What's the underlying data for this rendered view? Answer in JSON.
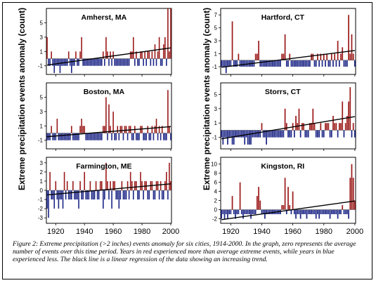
{
  "figure": {
    "y_axis_label": "Extreme precipitation events anomaly (count)",
    "caption": "Figure 2: Extreme precipitation (>2 inches) events anomaly for six cities, 1914-2000. In the graph, zero represents the average number of events over this time period.  Years in red experienced more than average extreme events, while years in blue experienced less.  The black line is a linear regression of the data showing an increasing trend.",
    "colors": {
      "above": "#9b1a1a",
      "below": "#1c2585",
      "trend": "#000000"
    }
  },
  "chart_data": [
    {
      "type": "bar",
      "title": "Amherst, MA",
      "x_ticks": [
        1920,
        1940,
        1960,
        1980,
        2000
      ],
      "xlim": [
        1914,
        2000
      ],
      "y_ticks": [
        -1,
        1,
        3,
        5
      ],
      "ylim": [
        -2.2,
        7
      ],
      "trend": {
        "start": [
          1914,
          -0.9
        ],
        "end": [
          2000,
          1.5
        ]
      },
      "x": [
        1914,
        1915,
        1916,
        1917,
        1918,
        1919,
        1920,
        1921,
        1922,
        1923,
        1924,
        1925,
        1926,
        1927,
        1928,
        1929,
        1930,
        1931,
        1932,
        1933,
        1934,
        1935,
        1936,
        1937,
        1938,
        1939,
        1940,
        1941,
        1942,
        1943,
        1944,
        1945,
        1946,
        1947,
        1948,
        1949,
        1950,
        1951,
        1952,
        1953,
        1954,
        1955,
        1956,
        1957,
        1958,
        1959,
        1960,
        1961,
        1962,
        1963,
        1964,
        1965,
        1966,
        1967,
        1968,
        1969,
        1970,
        1971,
        1972,
        1973,
        1974,
        1975,
        1976,
        1977,
        1978,
        1979,
        1980,
        1981,
        1982,
        1983,
        1984,
        1985,
        1986,
        1987,
        1988,
        1989,
        1990,
        1991,
        1992,
        1993,
        1994,
        1995,
        1996,
        1997,
        1998,
        1999,
        2000
      ],
      "values": [
        3,
        -1,
        -1,
        1,
        -1,
        -2,
        -1,
        -1,
        -1,
        -2,
        -1,
        -1,
        -1,
        -1,
        -1,
        1,
        -1,
        -2,
        -1,
        -1,
        1,
        -1,
        -1,
        1,
        3,
        -1,
        -1,
        -1,
        -1,
        -1,
        -1,
        -1,
        -1,
        -1,
        -1,
        -1,
        -1,
        -1,
        -1,
        1,
        -1,
        3,
        1,
        -1,
        1,
        -1,
        1,
        -1,
        -1,
        -1,
        -1,
        -1,
        -1,
        -1,
        -1,
        -1,
        -1,
        -1,
        1,
        1,
        3,
        -1,
        1,
        -1,
        -1,
        1,
        1,
        -1,
        1,
        -1,
        1,
        1,
        -1,
        1,
        -1,
        2,
        -1,
        1,
        3,
        -1,
        -1,
        2,
        3,
        -1,
        7,
        1,
        7
      ]
    },
    {
      "type": "bar",
      "title": "Boston, MA",
      "x_ticks": [
        1920,
        1940,
        1960,
        1980,
        2000
      ],
      "xlim": [
        1914,
        2000
      ],
      "y_ticks": [
        -1,
        1,
        3,
        5
      ],
      "ylim": [
        -2.2,
        7
      ],
      "trend": {
        "start": [
          1914,
          -0.5
        ],
        "end": [
          2000,
          0.9
        ]
      },
      "x": [
        1914,
        1915,
        1916,
        1917,
        1918,
        1919,
        1920,
        1921,
        1922,
        1923,
        1924,
        1925,
        1926,
        1927,
        1928,
        1929,
        1930,
        1931,
        1932,
        1933,
        1934,
        1935,
        1936,
        1937,
        1938,
        1939,
        1940,
        1941,
        1942,
        1943,
        1944,
        1945,
        1946,
        1947,
        1948,
        1949,
        1950,
        1951,
        1952,
        1953,
        1954,
        1955,
        1956,
        1957,
        1958,
        1959,
        1960,
        1961,
        1962,
        1963,
        1964,
        1965,
        1966,
        1967,
        1968,
        1969,
        1970,
        1971,
        1972,
        1973,
        1974,
        1975,
        1976,
        1977,
        1978,
        1979,
        1980,
        1981,
        1982,
        1983,
        1984,
        1985,
        1986,
        1987,
        1988,
        1989,
        1990,
        1991,
        1992,
        1993,
        1994,
        1995,
        1996,
        1997,
        1998,
        1999,
        2000
      ],
      "values": [
        -1,
        -1,
        -1,
        1,
        -1,
        -1,
        -1,
        2,
        -1,
        -1,
        -1,
        -1,
        -1,
        -1,
        -1,
        -1,
        -1,
        1,
        -1,
        -1,
        -1,
        -1,
        -1,
        1,
        2,
        1,
        1,
        -1,
        -1,
        -1,
        -1,
        -1,
        -1,
        -1,
        -1,
        -1,
        -1,
        -1,
        -1,
        1,
        1,
        5,
        -1,
        4,
        1,
        -1,
        3,
        -1,
        -1,
        1,
        -1,
        1,
        1,
        -1,
        1,
        1,
        -1,
        1,
        1,
        -1,
        -1,
        1,
        -1,
        -1,
        -1,
        1,
        1,
        -1,
        -1,
        -1,
        1,
        -1,
        -1,
        1,
        -1,
        1,
        2,
        -1,
        1,
        -1,
        1,
        -1,
        -1,
        -1,
        6,
        1,
        -1
      ]
    },
    {
      "type": "bar",
      "title": "Farmington, ME",
      "x_ticks": [
        1920,
        1940,
        1960,
        1980,
        2000
      ],
      "xlim": [
        1914,
        2000
      ],
      "y_ticks": [
        -3,
        -2,
        -1,
        0,
        1,
        2,
        3
      ],
      "ylim": [
        -3.6,
        3.6
      ],
      "trend": {
        "start": [
          1914,
          -0.5
        ],
        "end": [
          2000,
          0.7
        ]
      },
      "x": [
        1914,
        1915,
        1916,
        1917,
        1918,
        1919,
        1920,
        1921,
        1922,
        1923,
        1924,
        1925,
        1926,
        1927,
        1928,
        1929,
        1930,
        1931,
        1932,
        1933,
        1934,
        1935,
        1936,
        1937,
        1938,
        1939,
        1940,
        1941,
        1942,
        1943,
        1944,
        1945,
        1946,
        1947,
        1948,
        1949,
        1950,
        1951,
        1952,
        1953,
        1954,
        1955,
        1956,
        1957,
        1958,
        1959,
        1960,
        1961,
        1962,
        1963,
        1964,
        1965,
        1966,
        1967,
        1968,
        1969,
        1970,
        1971,
        1972,
        1973,
        1974,
        1975,
        1976,
        1977,
        1978,
        1979,
        1980,
        1981,
        1982,
        1983,
        1984,
        1985,
        1986,
        1987,
        1988,
        1989,
        1990,
        1991,
        1992,
        1993,
        1994,
        1995,
        1996,
        1997,
        1998,
        1999,
        2000
      ],
      "values": [
        -2,
        -3,
        2,
        -1,
        -1,
        -2,
        1,
        -1,
        -2,
        -1,
        -1,
        -2,
        2,
        -1,
        1,
        -1,
        -1,
        -1,
        1,
        -1,
        -1,
        -1,
        -2,
        1,
        -1,
        -1,
        2,
        -1,
        -1,
        -1,
        1,
        -1,
        -1,
        -1,
        1,
        -1,
        -1,
        1,
        1,
        -2,
        -1,
        3,
        1,
        -1,
        1,
        -2,
        1,
        1,
        -1,
        -1,
        -2,
        -1,
        1,
        -1,
        -1,
        -1,
        1,
        -1,
        2,
        1,
        -1,
        1,
        1,
        -1,
        -1,
        2,
        1,
        -1,
        1,
        1,
        -1,
        -1,
        1,
        1,
        -1,
        -1,
        1,
        1,
        -1,
        1,
        -1,
        -1,
        1,
        2,
        -1,
        3,
        1
      ]
    },
    {
      "type": "bar",
      "title": "Hartford, CT",
      "x_ticks": [
        1920,
        1940,
        1960,
        1980,
        2000
      ],
      "xlim": [
        1914,
        2000
      ],
      "y_ticks": [
        -1,
        1,
        3,
        5,
        7
      ],
      "ylim": [
        -2.2,
        8
      ],
      "trend": {
        "start": [
          1914,
          -1.1
        ],
        "end": [
          2000,
          1.5
        ]
      },
      "x": [
        1914,
        1915,
        1916,
        1917,
        1918,
        1919,
        1920,
        1921,
        1922,
        1923,
        1924,
        1925,
        1926,
        1927,
        1928,
        1929,
        1930,
        1931,
        1932,
        1933,
        1934,
        1935,
        1936,
        1937,
        1938,
        1939,
        1940,
        1941,
        1942,
        1943,
        1944,
        1945,
        1946,
        1947,
        1948,
        1949,
        1950,
        1951,
        1952,
        1953,
        1954,
        1955,
        1956,
        1957,
        1958,
        1959,
        1960,
        1961,
        1962,
        1963,
        1964,
        1965,
        1966,
        1967,
        1968,
        1969,
        1970,
        1971,
        1972,
        1973,
        1974,
        1975,
        1976,
        1977,
        1978,
        1979,
        1980,
        1981,
        1982,
        1983,
        1984,
        1985,
        1986,
        1987,
        1988,
        1989,
        1990,
        1991,
        1992,
        1993,
        1994,
        1995,
        1996,
        1997,
        1998,
        1999,
        2000
      ],
      "values": [
        -1,
        -1,
        -1,
        -2,
        -1,
        -1,
        -1,
        6,
        -1,
        -1,
        -1,
        1,
        -1,
        -1,
        -1,
        -1,
        -1,
        -1,
        -1,
        -1,
        -1,
        -1,
        1,
        1,
        3,
        -1,
        -1,
        -1,
        -1,
        -1,
        -1,
        -1,
        -1,
        -1,
        -1,
        -1,
        -1,
        -1,
        -1,
        1,
        1,
        4,
        -1,
        -1,
        1,
        -1,
        -1,
        -1,
        -1,
        -1,
        -1,
        -1,
        -1,
        -1,
        -1,
        -1,
        -1,
        -1,
        1,
        1,
        -1,
        -1,
        1,
        -1,
        1,
        -1,
        1,
        -1,
        1,
        -1,
        -1,
        1,
        -1,
        1,
        -1,
        3,
        -1,
        1,
        2,
        -1,
        -1,
        -1,
        7,
        1,
        4,
        1,
        -1
      ]
    },
    {
      "type": "bar",
      "title": "Storrs, CT",
      "x_ticks": [
        1920,
        1940,
        1960,
        1980,
        2000
      ],
      "xlim": [
        1914,
        2000
      ],
      "y_ticks": [
        -1,
        1,
        3,
        5
      ],
      "ylim": [
        -2.6,
        6.6
      ],
      "trend": {
        "start": [
          1914,
          -1.2
        ],
        "end": [
          2000,
          1.9
        ]
      },
      "x": [
        1914,
        1915,
        1916,
        1917,
        1918,
        1919,
        1920,
        1921,
        1922,
        1923,
        1924,
        1925,
        1926,
        1927,
        1928,
        1929,
        1930,
        1931,
        1932,
        1933,
        1934,
        1935,
        1936,
        1937,
        1938,
        1939,
        1940,
        1941,
        1942,
        1943,
        1944,
        1945,
        1946,
        1947,
        1948,
        1949,
        1950,
        1951,
        1952,
        1953,
        1954,
        1955,
        1956,
        1957,
        1958,
        1959,
        1960,
        1961,
        1962,
        1963,
        1964,
        1965,
        1966,
        1967,
        1968,
        1969,
        1970,
        1971,
        1972,
        1973,
        1974,
        1975,
        1976,
        1977,
        1978,
        1979,
        1980,
        1981,
        1982,
        1983,
        1984,
        1985,
        1986,
        1987,
        1988,
        1989,
        1990,
        1991,
        1992,
        1993,
        1994,
        1995,
        1996,
        1997,
        1998,
        1999,
        2000
      ],
      "values": [
        -1,
        -2,
        -1,
        -1,
        -2,
        -1,
        -1,
        -2,
        -2,
        -1,
        -1,
        -1,
        -1,
        -1,
        -1,
        -2,
        -1,
        -2,
        -2,
        -2,
        -1,
        -1,
        -1,
        -1,
        -1,
        -1,
        1,
        -1,
        -1,
        -2,
        -1,
        -1,
        -1,
        -1,
        -1,
        -1,
        -1,
        -1,
        -1,
        -1,
        -1,
        3,
        1,
        -1,
        -1,
        -1,
        1,
        -1,
        2,
        1,
        3,
        -1,
        1,
        1,
        -1,
        -1,
        -1,
        1,
        1,
        3,
        1,
        -1,
        -1,
        -1,
        1,
        -1,
        -1,
        1,
        1,
        1,
        -1,
        -1,
        2,
        1,
        1,
        -1,
        1,
        1,
        4,
        -1,
        1,
        2,
        4,
        6,
        -1,
        1,
        -1
      ]
    },
    {
      "type": "bar",
      "title": "Kingston, RI",
      "x_ticks": [
        1920,
        1940,
        1960,
        1980,
        2000
      ],
      "xlim": [
        1914,
        2000
      ],
      "y_ticks": [
        -2,
        0,
        2,
        4,
        6,
        8,
        10
      ],
      "ylim": [
        -3,
        11.5
      ],
      "trend": {
        "start": [
          1914,
          -2.2
        ],
        "end": [
          2000,
          1.9
        ]
      },
      "x": [
        1914,
        1915,
        1916,
        1917,
        1918,
        1919,
        1920,
        1921,
        1922,
        1923,
        1924,
        1925,
        1926,
        1927,
        1928,
        1929,
        1930,
        1931,
        1932,
        1933,
        1934,
        1935,
        1936,
        1937,
        1938,
        1939,
        1940,
        1941,
        1942,
        1943,
        1944,
        1945,
        1946,
        1947,
        1948,
        1949,
        1950,
        1951,
        1952,
        1953,
        1954,
        1955,
        1956,
        1957,
        1958,
        1959,
        1960,
        1961,
        1962,
        1963,
        1964,
        1965,
        1966,
        1967,
        1968,
        1969,
        1970,
        1971,
        1972,
        1973,
        1974,
        1975,
        1976,
        1977,
        1978,
        1979,
        1980,
        1981,
        1982,
        1983,
        1984,
        1985,
        1986,
        1987,
        1988,
        1989,
        1990,
        1991,
        1992,
        1993,
        1994,
        1995,
        1996,
        1997,
        1998,
        1999,
        2000
      ],
      "values": [
        -2,
        -1,
        -2,
        -1,
        -2,
        -1,
        -1,
        3,
        -1,
        -2,
        -1,
        -1,
        6,
        -1,
        -2,
        -1,
        -1,
        -1,
        -1,
        -2,
        -1,
        -1,
        -1,
        3,
        5,
        2,
        -1,
        -1,
        -2,
        -1,
        -1,
        -1,
        -1,
        -1,
        -1,
        -1,
        -1,
        -1,
        -1,
        1,
        1,
        7,
        -1,
        5,
        1,
        -1,
        4,
        -1,
        -2,
        -1,
        -1,
        -2,
        -1,
        -1,
        -1,
        -2,
        -1,
        -1,
        -1,
        -1,
        -1,
        -2,
        -1,
        -2,
        -1,
        -1,
        -1,
        -1,
        -1,
        -1,
        -2,
        -1,
        -1,
        -1,
        -1,
        -2,
        -1,
        -1,
        1,
        -1,
        -1,
        -1,
        -2,
        7,
        10,
        7,
        2
      ]
    }
  ]
}
